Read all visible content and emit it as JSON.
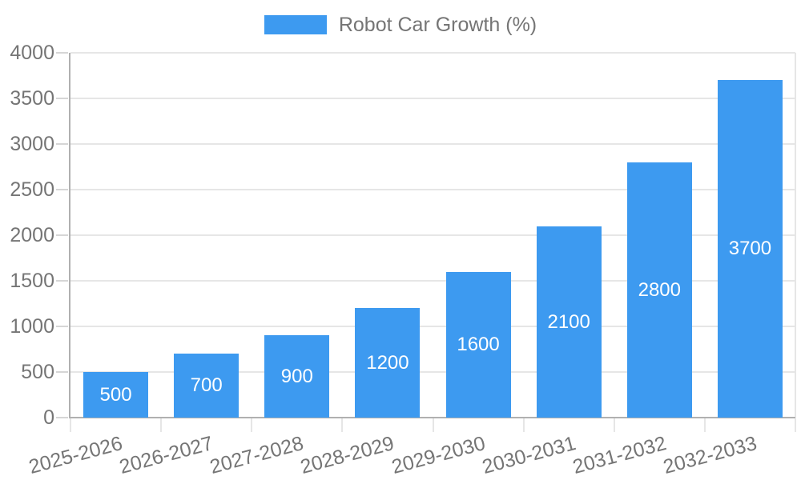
{
  "chart_data": {
    "type": "bar",
    "title": "",
    "legend": "Robot Car Growth (%)",
    "legend_position": "top",
    "categories": [
      "2025-2026",
      "2026-2027",
      "2027-2028",
      "2028-2029",
      "2029-2030",
      "2030-2031",
      "2031-2032",
      "2032-2033"
    ],
    "values": [
      500,
      700,
      900,
      1200,
      1600,
      2100,
      2800,
      3700
    ],
    "bar_value_labels": [
      "500",
      "700",
      "900",
      "1200",
      "1600",
      "2100",
      "2800",
      "3700"
    ],
    "xlabel": "",
    "ylabel": "",
    "yticks": [
      0,
      500,
      1000,
      1500,
      2000,
      2500,
      3000,
      3500,
      4000
    ],
    "ylim": [
      0,
      4000
    ],
    "grid": true,
    "colors": {
      "bar": "#3D9AF0",
      "axis_text": "#757575",
      "bar_label_text": "#FFFFFF",
      "gridline": "#E6E6E6",
      "axis_line": "#B0B0B0",
      "tick": "#D6D6D6",
      "background": "#FFFFFF"
    }
  }
}
